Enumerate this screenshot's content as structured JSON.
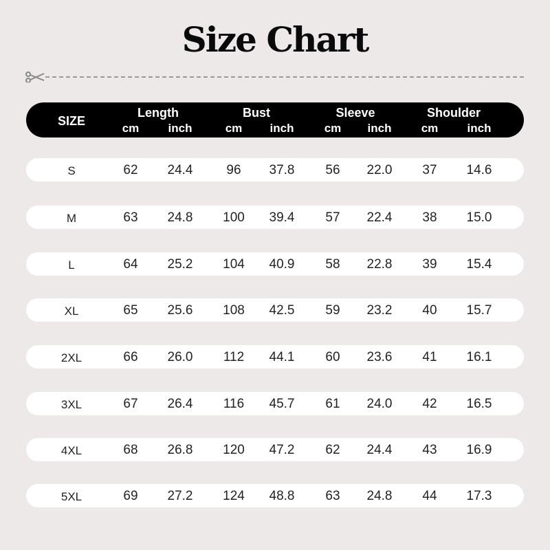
{
  "title": "Size Chart",
  "icons": {
    "cut": "scissors-icon"
  },
  "header": {
    "size": "SIZE",
    "groups": [
      "Length",
      "Bust",
      "Sleeve",
      "Shoulder"
    ],
    "units": [
      "cm",
      "inch"
    ]
  },
  "rows": [
    [
      "S",
      "62",
      "24.4",
      "96",
      "37.8",
      "56",
      "22.0",
      "37",
      "14.6"
    ],
    [
      "M",
      "63",
      "24.8",
      "100",
      "39.4",
      "57",
      "22.4",
      "38",
      "15.0"
    ],
    [
      "L",
      "64",
      "25.2",
      "104",
      "40.9",
      "58",
      "22.8",
      "39",
      "15.4"
    ],
    [
      "XL",
      "65",
      "25.6",
      "108",
      "42.5",
      "59",
      "23.2",
      "40",
      "15.7"
    ],
    [
      "2XL",
      "66",
      "26.0",
      "112",
      "44.1",
      "60",
      "23.6",
      "41",
      "16.1"
    ],
    [
      "3XL",
      "67",
      "26.4",
      "116",
      "45.7",
      "61",
      "24.0",
      "42",
      "16.5"
    ],
    [
      "4XL",
      "68",
      "26.8",
      "120",
      "47.2",
      "62",
      "24.4",
      "43",
      "16.9"
    ],
    [
      "5XL",
      "69",
      "27.2",
      "124",
      "48.8",
      "63",
      "24.8",
      "44",
      "17.3"
    ]
  ]
}
